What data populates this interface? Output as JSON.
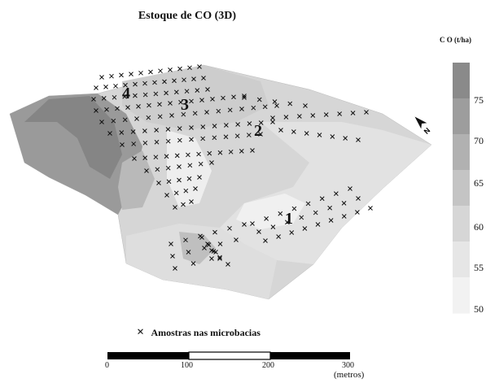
{
  "title": "Estoque de CO (3D)",
  "legend": {
    "title": "C O (t/ha)",
    "ticks": [
      "75",
      "70",
      "65",
      "60",
      "55",
      "50"
    ],
    "colors": [
      "#8a8a8a",
      "#9d9d9d",
      "#b1b1b1",
      "#c4c4c4",
      "#d6d6d6",
      "#e6e6e6",
      "#f2f2f2"
    ]
  },
  "zones": [
    "1",
    "2",
    "3",
    "4"
  ],
  "north_icon": "north-arrow-icon",
  "samples_legend": {
    "symbol": "×",
    "label": "Amostras nas microbacias"
  },
  "scale_bar": {
    "labels": [
      "0",
      "100",
      "200",
      "300"
    ],
    "units": "(metros)"
  }
}
